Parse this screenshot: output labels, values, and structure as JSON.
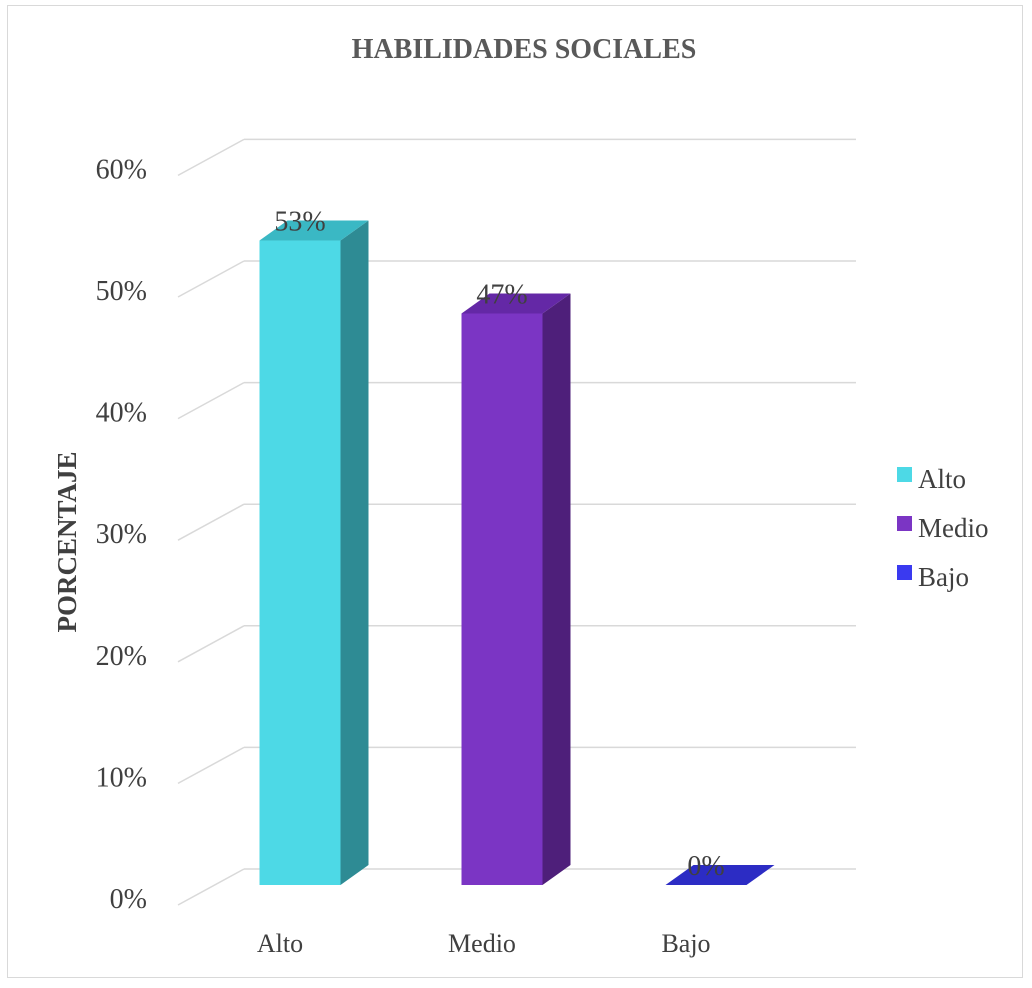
{
  "chart_data": {
    "type": "bar",
    "title": "HABILIDADES SOCIALES",
    "xlabel": "",
    "ylabel": "PORCENTAJE",
    "categories": [
      "Alto",
      "Medio",
      "Bajo"
    ],
    "values": [
      53,
      47,
      0
    ],
    "data_labels": [
      "53%",
      "47%",
      "0%"
    ],
    "y_ticks": [
      "0%",
      "10%",
      "20%",
      "30%",
      "40%",
      "50%",
      "60%"
    ],
    "ylim": [
      0,
      60
    ],
    "grid": true,
    "three_d": true,
    "legend": {
      "position": "right",
      "entries": [
        "Alto",
        "Medio",
        "Bajo"
      ]
    },
    "colors": {
      "Alto": {
        "front": "#4dd9e6",
        "side": "#2e8b94",
        "top": "#3ab8c4"
      },
      "Medio": {
        "front": "#7b35c4",
        "side": "#4e1f7a",
        "top": "#6428a6"
      },
      "Bajo": {
        "front": "#3a3af0",
        "side": "#1f1f9c",
        "top": "#2c2cc4"
      }
    }
  }
}
